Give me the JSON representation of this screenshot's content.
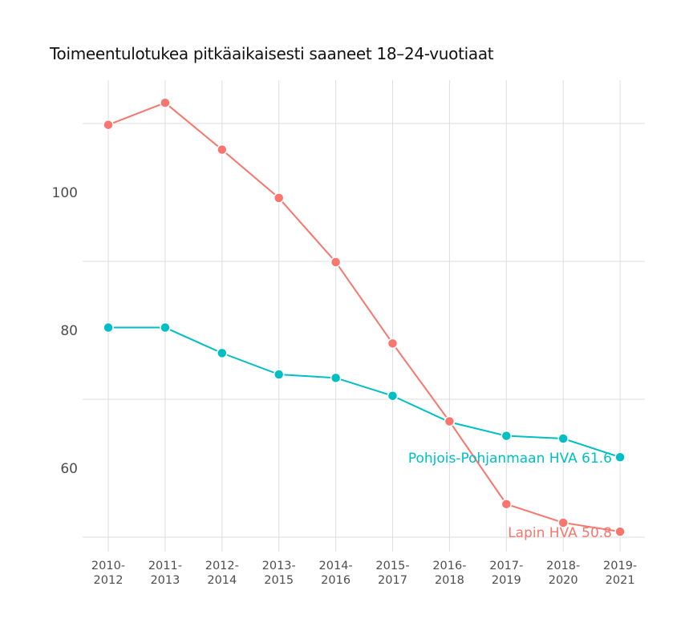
{
  "chart_data": {
    "type": "line",
    "title": "Toimeentulotukea pitkäaikaisesti saaneet 18–24-vuotiaat",
    "xlabel": "",
    "ylabel": "",
    "categories": [
      "2010-2012",
      "2011-2013",
      "2012-2014",
      "2013-2015",
      "2014-2016",
      "2015-2017",
      "2016-2018",
      "2017-2019",
      "2018-2020",
      "2019-2021"
    ],
    "category_lines": [
      [
        "2010-",
        "2012"
      ],
      [
        "2011-",
        "2013"
      ],
      [
        "2012-",
        "2014"
      ],
      [
        "2013-",
        "2015"
      ],
      [
        "2014-",
        "2016"
      ],
      [
        "2015-",
        "2017"
      ],
      [
        "2016-",
        "2018"
      ],
      [
        "2017-",
        "2019"
      ],
      [
        "2018-",
        "2020"
      ],
      [
        "2019-",
        "2021"
      ]
    ],
    "yticks": [
      60,
      80,
      100
    ],
    "ylim": [
      48,
      116
    ],
    "grid": {
      "horizontal_at": [
        50,
        70,
        90,
        110
      ],
      "vertical": true
    },
    "legend": "none (direct end labels)",
    "series": [
      {
        "name": "Lapin HVA",
        "color": "#F8766D",
        "values": [
          109.8,
          113.0,
          106.2,
          99.2,
          89.9,
          78.1,
          66.8,
          54.8,
          52.1,
          50.8
        ],
        "end_label": "Lapin HVA 50.8"
      },
      {
        "name": "Pohjois-Pohjanmaan HVA",
        "color": "#00BFC4",
        "values": [
          80.4,
          80.4,
          76.7,
          73.6,
          73.1,
          70.5,
          66.7,
          64.7,
          64.3,
          61.6
        ],
        "end_label": "Pohjois-Pohjanmaan HVA 61.6"
      }
    ]
  }
}
